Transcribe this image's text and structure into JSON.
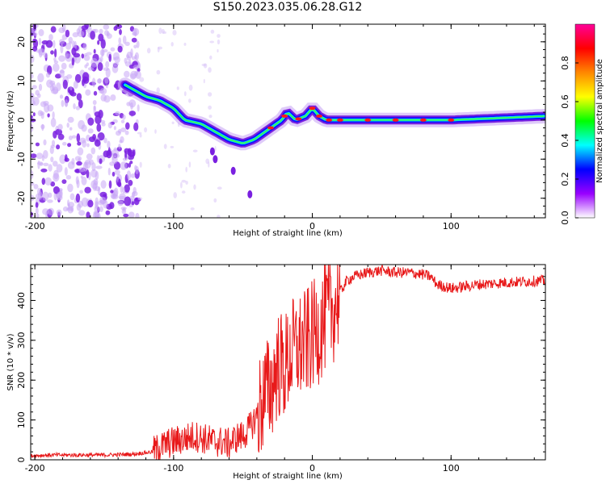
{
  "figure": {
    "title": "S150.2023.035.06.28.G12"
  },
  "chart_data": [
    {
      "type": "heatmap",
      "xlabel": "Height of straight line (km)",
      "ylabel": "Frequency (Hz)",
      "xlim": [
        -203,
        168
      ],
      "ylim": [
        -25,
        24.5
      ],
      "xticks": [
        "-200",
        "-100",
        "0",
        "100"
      ],
      "yticks": [
        "-20",
        "-10",
        "0",
        "10",
        "20"
      ],
      "colorbar": {
        "label": "Normalized spectral amplitude",
        "range": [
          0.0,
          1.0
        ],
        "ticks": [
          "0.0",
          "0.2",
          "0.4",
          "0.6",
          "0.8"
        ],
        "colormap": [
          "#ffffff",
          "#9900ff",
          "#0000ff",
          "#00ffff",
          "#00ff00",
          "#ffff00",
          "#ff8800",
          "#ff0000",
          "#ff0099"
        ]
      },
      "ridge": {
        "x": [
          -135,
          -120,
          -110,
          -100,
          -92,
          -80,
          -70,
          -60,
          -50,
          -42,
          -30,
          -22,
          -18,
          -12,
          -5,
          0,
          5,
          10,
          20,
          50,
          100,
          168
        ],
        "y": [
          9,
          6,
          5,
          3,
          0,
          -1,
          -3,
          -5,
          -6,
          -5,
          -2,
          0,
          2,
          0,
          1,
          3,
          1,
          0,
          0,
          0,
          0,
          1
        ]
      },
      "noise_region_x": [
        -203,
        -125
      ],
      "noise_color": "#7a20e0"
    },
    {
      "type": "line",
      "xlabel": "Height of straight line (km)",
      "ylabel": "SNR (10 * v/v)",
      "xlim": [
        -203,
        168
      ],
      "ylim": [
        0,
        490
      ],
      "xticks": [
        "-200",
        "-100",
        "0",
        "100"
      ],
      "yticks": [
        "0",
        "100",
        "200",
        "300",
        "400"
      ],
      "line_color": "#e8191a",
      "series": [
        {
          "x": [
            -203,
            -190,
            -170,
            -150,
            -130,
            -115,
            -105,
            -100,
            -95,
            -90,
            -85,
            -80,
            -75,
            -70,
            -65,
            -60,
            -55,
            -50,
            -45,
            -40,
            -35,
            -30,
            -25,
            -20,
            -15,
            -10,
            -5,
            0,
            5,
            10,
            15,
            20,
            25,
            30,
            40,
            50,
            60,
            70,
            80,
            85,
            90,
            100,
            120,
            140,
            168
          ],
          "y": [
            10,
            12,
            12,
            12,
            14,
            20,
            40,
            45,
            50,
            55,
            60,
            55,
            50,
            45,
            45,
            40,
            55,
            60,
            80,
            110,
            160,
            180,
            240,
            230,
            270,
            280,
            290,
            310,
            330,
            360,
            380,
            420,
            450,
            460,
            470,
            475,
            470,
            470,
            465,
            460,
            440,
            430,
            440,
            445,
            450
          ]
        }
      ]
    }
  ]
}
